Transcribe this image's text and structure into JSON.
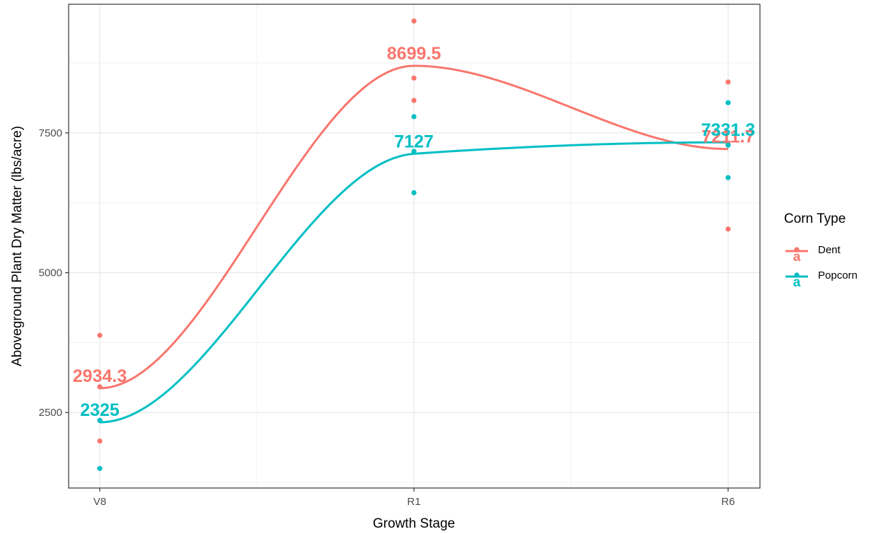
{
  "chart_data": {
    "type": "line",
    "title": "",
    "xlabel": "Growth Stage",
    "ylabel": "Aboveground Plant Dry Matter (lbs/acre)",
    "categories": [
      "V8",
      "R1",
      "R6"
    ],
    "ylim": [
      1150,
      9800
    ],
    "yticks": [
      2500,
      5000,
      7500
    ],
    "ytick_labels": [
      "2500",
      "5000",
      "7500"
    ],
    "grid": true,
    "legend": {
      "title": "Corn Type",
      "position": "right",
      "key_glyph": "a"
    },
    "series": [
      {
        "name": "Dent",
        "color": "#F8766D",
        "means": [
          2934.3,
          8699.5,
          7211.7
        ],
        "mean_labels": [
          "2934.3",
          "8699.5",
          "7211.7"
        ],
        "points": [
          {
            "x": "V8",
            "y": 3880
          },
          {
            "x": "V8",
            "y": 2960
          },
          {
            "x": "V8",
            "y": 1990
          },
          {
            "x": "R1",
            "y": 9500
          },
          {
            "x": "R1",
            "y": 8480
          },
          {
            "x": "R1",
            "y": 8080
          },
          {
            "x": "R6",
            "y": 8410
          },
          {
            "x": "R6",
            "y": 7300
          },
          {
            "x": "R6",
            "y": 5780
          }
        ]
      },
      {
        "name": "Popcorn",
        "color": "#00BFC4",
        "means": [
          2325,
          7127,
          7331.3
        ],
        "mean_labels": [
          "2325",
          "7127",
          "7331.3"
        ],
        "points": [
          {
            "x": "V8",
            "y": 2360
          },
          {
            "x": "V8",
            "y": 1500
          },
          {
            "x": "R1",
            "y": 7790
          },
          {
            "x": "R1",
            "y": 7170
          },
          {
            "x": "R1",
            "y": 6430
          },
          {
            "x": "R6",
            "y": 8040
          },
          {
            "x": "R6",
            "y": 7280
          },
          {
            "x": "R6",
            "y": 6700
          }
        ]
      }
    ]
  }
}
